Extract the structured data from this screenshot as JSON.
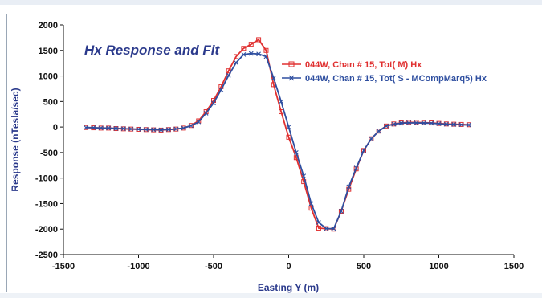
{
  "chart_data": {
    "type": "line",
    "title": "Hx Response and Fit",
    "xlabel": "Easting Y (m)",
    "ylabel": "Response (nTesla/sec)",
    "xlim": [
      -1500,
      1500
    ],
    "ylim": [
      -2500,
      2000
    ],
    "xticks": [
      -1500,
      -1000,
      -500,
      0,
      500,
      1000,
      1500
    ],
    "yticks": [
      -2500,
      -2000,
      -1500,
      -1000,
      -500,
      0,
      500,
      1000,
      1500,
      2000
    ],
    "grid": false,
    "legend_position": "right",
    "series": [
      {
        "name": "044W, Chan # 15, Tot( M) Hx",
        "color": "#e03030",
        "marker": "square",
        "x": [
          -1350,
          -1300,
          -1250,
          -1200,
          -1150,
          -1100,
          -1050,
          -1000,
          -950,
          -900,
          -850,
          -800,
          -750,
          -700,
          -650,
          -600,
          -550,
          -500,
          -450,
          -400,
          -350,
          -300,
          -250,
          -200,
          -150,
          -100,
          -50,
          0,
          50,
          100,
          150,
          200,
          250,
          300,
          350,
          400,
          450,
          500,
          550,
          600,
          650,
          700,
          750,
          800,
          850,
          900,
          950,
          1000,
          1050,
          1100,
          1150,
          1200
        ],
        "y": [
          -10,
          -15,
          -20,
          -20,
          -30,
          -35,
          -40,
          -45,
          -50,
          -55,
          -60,
          -50,
          -40,
          -20,
          30,
          120,
          300,
          520,
          790,
          1100,
          1380,
          1540,
          1620,
          1710,
          1500,
          830,
          300,
          -200,
          -600,
          -1070,
          -1590,
          -1980,
          -1990,
          -2000,
          -1650,
          -1220,
          -820,
          -460,
          -230,
          -80,
          20,
          60,
          80,
          90,
          90,
          85,
          80,
          70,
          60,
          55,
          50,
          45
        ]
      },
      {
        "name": "044W, Chan # 15, Tot( S - MCompMarq5) Hx",
        "color": "#2f4fa0",
        "marker": "x",
        "x": [
          -1350,
          -1300,
          -1250,
          -1200,
          -1150,
          -1100,
          -1050,
          -1000,
          -950,
          -900,
          -850,
          -800,
          -750,
          -700,
          -650,
          -600,
          -550,
          -500,
          -450,
          -400,
          -350,
          -300,
          -250,
          -200,
          -150,
          -100,
          -50,
          0,
          50,
          100,
          150,
          200,
          250,
          300,
          350,
          400,
          450,
          500,
          550,
          600,
          650,
          700,
          750,
          800,
          850,
          900,
          950,
          1000,
          1050,
          1100,
          1150,
          1200
        ],
        "y": [
          -10,
          -12,
          -18,
          -20,
          -28,
          -32,
          -38,
          -42,
          -48,
          -52,
          -55,
          -48,
          -38,
          -20,
          25,
          100,
          270,
          470,
          730,
          1010,
          1260,
          1420,
          1440,
          1430,
          1380,
          960,
          500,
          0,
          -500,
          -960,
          -1500,
          -1870,
          -1990,
          -1990,
          -1650,
          -1170,
          -800,
          -460,
          -230,
          -80,
          20,
          55,
          75,
          80,
          80,
          78,
          75,
          65,
          55,
          50,
          45,
          40
        ]
      }
    ]
  }
}
